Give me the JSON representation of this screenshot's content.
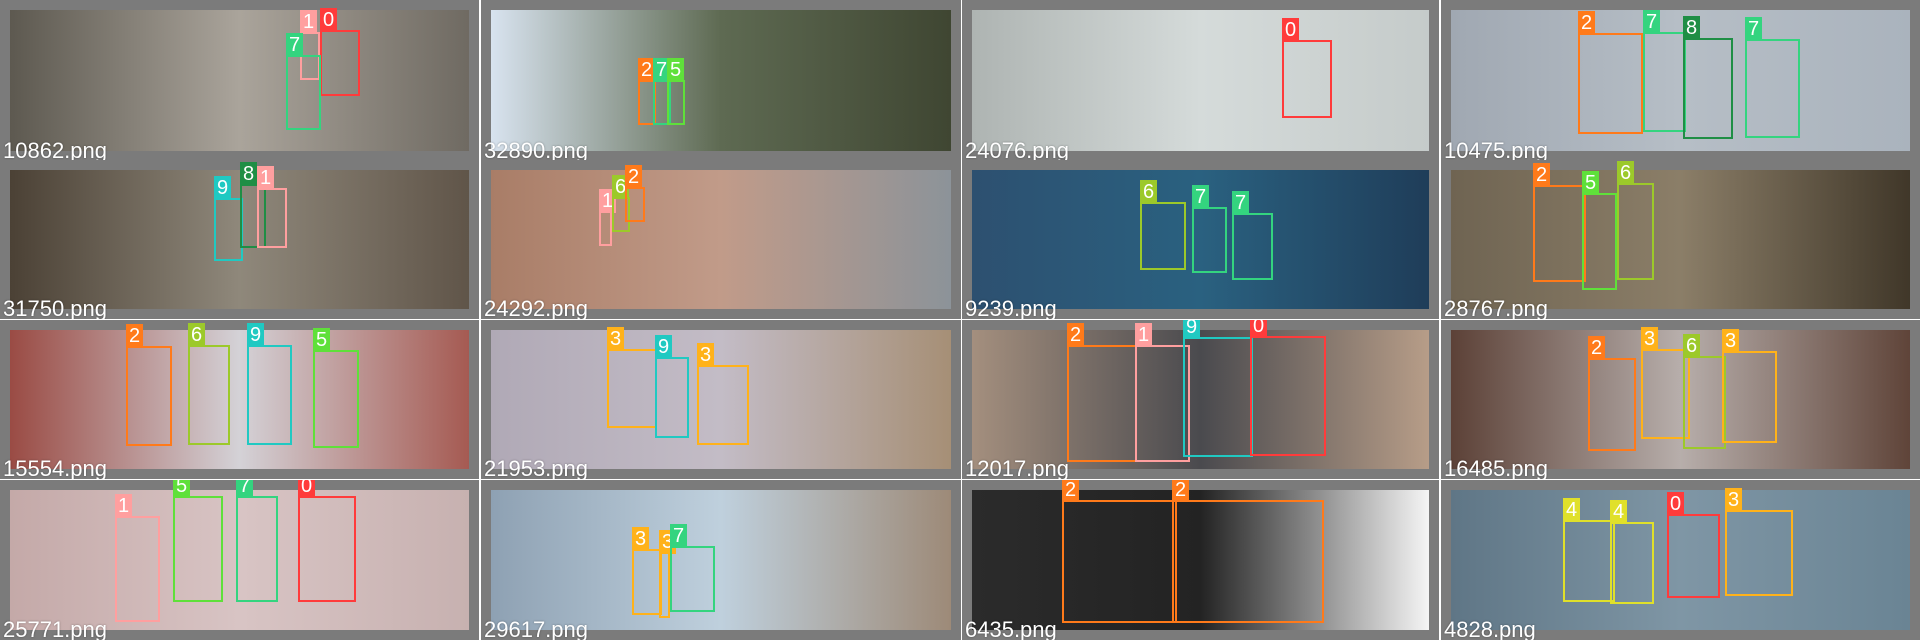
{
  "screenshot": {
    "kind": "object-detection prediction mosaic",
    "grid": {
      "rows": 4,
      "columns": 4
    }
  },
  "class_colors": {
    "0": "#ff3b3b",
    "1": "#ff9f9f",
    "2": "#ff7a1a",
    "3": "#ffb21a",
    "4": "#e0e02a",
    "5": "#5fe03a",
    "6": "#9cc92a",
    "7": "#34d47f",
    "8": "#1f8e45",
    "9": "#20c9c2"
  },
  "tiles": [
    {
      "filename": "10862.png",
      "background": [
        "#5d5950",
        "#aaa49b",
        "#6f6a62"
      ],
      "detections": [
        {
          "label": "1",
          "class_id": 1
        },
        {
          "label": "0",
          "class_id": 0
        },
        {
          "label": "7",
          "class_id": 7
        }
      ]
    },
    {
      "filename": "32890.png",
      "background": [
        "#d8e3ef",
        "#5e6a52",
        "#3f4632"
      ],
      "detections": [
        {
          "label": "2",
          "class_id": 2
        },
        {
          "label": "7",
          "class_id": 7
        },
        {
          "label": "5",
          "class_id": 5
        }
      ]
    },
    {
      "filename": "24076.png",
      "background": [
        "#aeb4b2",
        "#d5dbda",
        "#c5cbca"
      ],
      "detections": [
        {
          "label": "0",
          "class_id": 0
        }
      ]
    },
    {
      "filename": "10475.png",
      "background": [
        "#a0a8b2",
        "#b6bec6",
        "#aab3bd"
      ],
      "detections": [
        {
          "label": "2",
          "class_id": 2
        },
        {
          "label": "7",
          "class_id": 7
        },
        {
          "label": "8",
          "class_id": 8
        },
        {
          "label": "7",
          "class_id": 7
        }
      ]
    },
    {
      "filename": "31750.png",
      "background": [
        "#4b4135",
        "#8f887b",
        "#605549"
      ],
      "detections": [
        {
          "label": "9",
          "class_id": 9
        },
        {
          "label": "8",
          "class_id": 8
        },
        {
          "label": "1",
          "class_id": 1
        }
      ]
    },
    {
      "filename": "24292.png",
      "background": [
        "#a97d67",
        "#c19b89",
        "#8c9399"
      ],
      "detections": [
        {
          "label": "1",
          "class_id": 1
        },
        {
          "label": "6",
          "class_id": 6
        },
        {
          "label": "2",
          "class_id": 2
        }
      ]
    },
    {
      "filename": "9239.png",
      "background": [
        "#2d5070",
        "#2a6180",
        "#1f3d59"
      ],
      "detections": [
        {
          "label": "6",
          "class_id": 6
        },
        {
          "label": "7",
          "class_id": 7
        },
        {
          "label": "7",
          "class_id": 7
        }
      ]
    },
    {
      "filename": "28767.png",
      "background": [
        "#6f6452",
        "#8b7e68",
        "#403729"
      ],
      "detections": [
        {
          "label": "2",
          "class_id": 2
        },
        {
          "label": "5",
          "class_id": 5
        },
        {
          "label": "6",
          "class_id": 6
        }
      ]
    },
    {
      "filename": "15554.png",
      "background": [
        "#9a4b44",
        "#d4d2d7",
        "#a55a52"
      ],
      "detections": [
        {
          "label": "2",
          "class_id": 2
        },
        {
          "label": "6",
          "class_id": 6
        },
        {
          "label": "9",
          "class_id": 9
        },
        {
          "label": "5",
          "class_id": 5
        }
      ]
    },
    {
      "filename": "21953.png",
      "background": [
        "#b0a9b6",
        "#c3bcc6",
        "#a68f76"
      ],
      "detections": [
        {
          "label": "3",
          "class_id": 3
        },
        {
          "label": "9",
          "class_id": 9
        },
        {
          "label": "3",
          "class_id": 3
        }
      ]
    },
    {
      "filename": "12017.png",
      "background": [
        "#a48f7e",
        "#4a4a4e",
        "#b79d88"
      ],
      "detections": [
        {
          "label": "2",
          "class_id": 2
        },
        {
          "label": "1",
          "class_id": 1
        },
        {
          "label": "9",
          "class_id": 9
        },
        {
          "label": "0",
          "class_id": 0
        }
      ]
    },
    {
      "filename": "16485.png",
      "background": [
        "#5c4137",
        "#b7aeab",
        "#5f4439"
      ],
      "detections": [
        {
          "label": "2",
          "class_id": 2
        },
        {
          "label": "3",
          "class_id": 3
        },
        {
          "label": "6",
          "class_id": 6
        },
        {
          "label": "3",
          "class_id": 3
        }
      ]
    },
    {
      "filename": "25771.png",
      "background": [
        "#c4a9a8",
        "#d8c4c4",
        "#c7b1b0"
      ],
      "detections": [
        {
          "label": "1",
          "class_id": 1
        },
        {
          "label": "5",
          "class_id": 5
        },
        {
          "label": "7",
          "class_id": 7
        },
        {
          "label": "0",
          "class_id": 0
        }
      ]
    },
    {
      "filename": "29617.png",
      "background": [
        "#8ea1b3",
        "#bfd0dd",
        "#9d8a78"
      ],
      "detections": [
        {
          "label": "3",
          "class_id": 3
        },
        {
          "label": "3",
          "class_id": 3
        },
        {
          "label": "7",
          "class_id": 7
        }
      ]
    },
    {
      "filename": "6435.png",
      "background": [
        "#2b2b2b",
        "#232323",
        "#f5f5f5"
      ],
      "detections": [
        {
          "label": "2",
          "class_id": 2
        },
        {
          "label": "2",
          "class_id": 2
        }
      ]
    },
    {
      "filename": "4828.png",
      "background": [
        "#5f7686",
        "#7f96a5",
        "#6a8494"
      ],
      "detections": [
        {
          "label": "4",
          "class_id": 4
        },
        {
          "label": "4",
          "class_id": 4
        },
        {
          "label": "0",
          "class_id": 0
        },
        {
          "label": "3",
          "class_id": 3
        }
      ]
    }
  ]
}
